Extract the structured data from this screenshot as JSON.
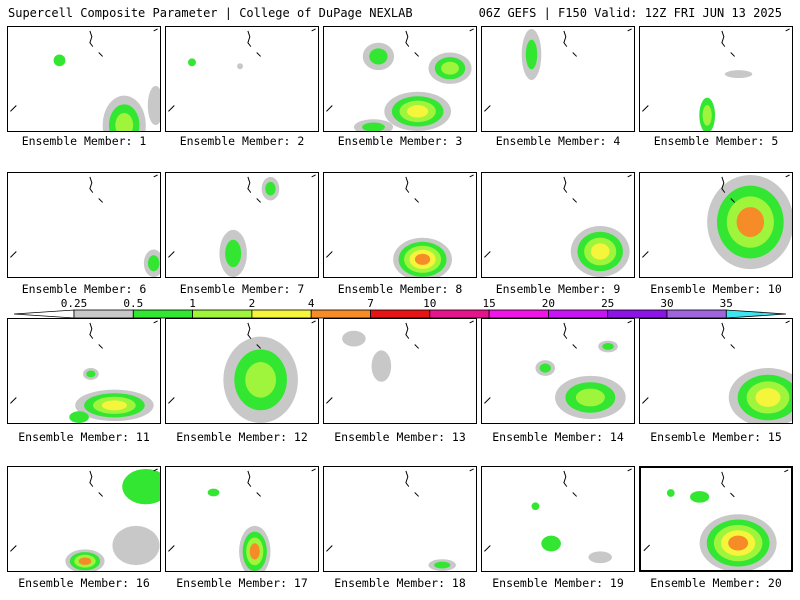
{
  "header": {
    "left": "Supercell Composite Parameter | College of DuPage NEXLAB",
    "right": "06Z GEFS | F150 Valid: 12Z FRI JUN 13 2025"
  },
  "members": [
    "Ensemble Member: 1",
    "Ensemble Member: 2",
    "Ensemble Member: 3",
    "Ensemble Member: 4",
    "Ensemble Member: 5",
    "Ensemble Member: 6",
    "Ensemble Member: 7",
    "Ensemble Member: 8",
    "Ensemble Member: 9",
    "Ensemble Member: 10",
    "Ensemble Member: 11",
    "Ensemble Member: 12",
    "Ensemble Member: 13",
    "Ensemble Member: 14",
    "Ensemble Member: 15",
    "Ensemble Member: 16",
    "Ensemble Member: 17",
    "Ensemble Member: 18",
    "Ensemble Member: 19",
    "Ensemble Member: 20"
  ],
  "selected_member": 20,
  "colorbar": {
    "levels": [
      "0.25",
      "0.5",
      "1",
      "2",
      "4",
      "7",
      "10",
      "15",
      "20",
      "25",
      "30",
      "35"
    ],
    "colors": [
      "#c8c8c8",
      "#32e632",
      "#9ef53c",
      "#f5f53c",
      "#f58c28",
      "#e61414",
      "#e6148c",
      "#f014e6",
      "#c814f5",
      "#8c14e6",
      "#a064dc",
      "#3ce6f0"
    ]
  },
  "levels_color": {
    "gray": "#c8c8c8",
    "green": "#32e632",
    "lightgreen": "#9ef53c",
    "yellow": "#f5f53c",
    "orange": "#f58c28",
    "red": "#e61414"
  }
}
